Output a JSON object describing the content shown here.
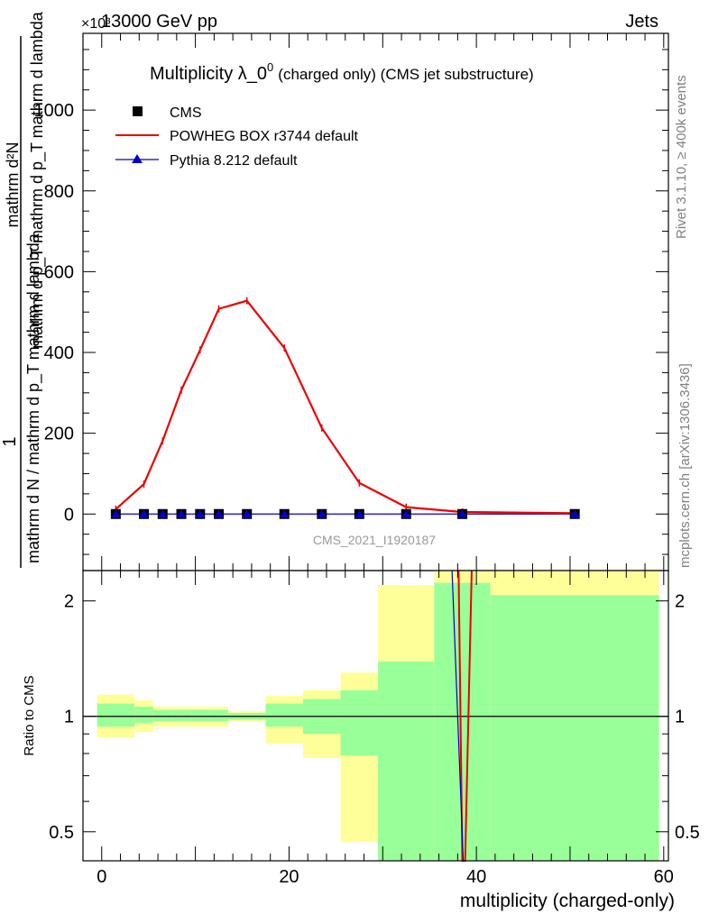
{
  "header": {
    "energy": "13000 GeV pp",
    "category": "Jets",
    "exponent": "×10³",
    "rivet": "Rivet 3.1.10, ≥ 400k events",
    "mcplots": "mcplots.cern.ch [arXiv:1306.3436]"
  },
  "chart_data": [
    {
      "type": "line",
      "title": "Multiplicity λ_0⁰",
      "title_main": "Multiplicity λ_0",
      "title_sup": "0",
      "title_note": "(charged only) (CMS jet substructure)",
      "ylabel_parts": [
        "1",
        "mathrm d N / mathrm d p_T mathrm d lambda",
        "mathrm d²N",
        "mathrm d p_T mathrm d p_T mathrm d lambda"
      ],
      "y_scale_exponent": "×10³",
      "ylim": [
        -140,
        1190
      ],
      "xlim": [
        -2,
        60.5
      ],
      "y_ticks": [
        0,
        200,
        400,
        600,
        800,
        1000
      ],
      "analysis_id": "CMS_2021_I1920187",
      "x": [
        1.5,
        4.5,
        6.5,
        8.5,
        10.5,
        12.5,
        15.5,
        19.5,
        23.5,
        27.5,
        32.5,
        38.5,
        50.5
      ],
      "series": [
        {
          "name": "CMS",
          "marker": "square",
          "color": "#000000",
          "values": [
            0,
            0,
            0,
            0,
            0,
            0,
            0,
            0,
            0,
            0,
            0,
            0,
            0
          ]
        },
        {
          "name": "POWHEG BOX r3744 default",
          "marker": "none",
          "color": "#ee0000",
          "values": [
            12,
            74,
            181,
            307,
            406,
            508,
            528,
            411,
            213,
            77,
            17,
            5,
            2
          ]
        },
        {
          "name": "Pythia 8.212 default",
          "marker": "triangle",
          "color": "#0000cc",
          "values": [
            0,
            0,
            0,
            0,
            0,
            0,
            0,
            0,
            0,
            0,
            0,
            0,
            0
          ]
        }
      ],
      "legend": [
        "CMS",
        "POWHEG BOX r3744 default",
        "Pythia 8.212 default"
      ]
    },
    {
      "type": "line",
      "ylabel": "Ratio to CMS",
      "xlabel": "multiplicity (charged-only)",
      "yscale": "log",
      "ylim": [
        0.42,
        2.4
      ],
      "xlim": [
        -2,
        60.5
      ],
      "x_ticks": [
        0,
        20,
        40,
        60
      ],
      "y_tick_labels": [
        "0.5",
        "1",
        "2"
      ],
      "y_tick_values": [
        0.5,
        1,
        2
      ],
      "bins": [
        [
          -0.5,
          3.5
        ],
        [
          3.5,
          5.5
        ],
        [
          5.5,
          7.5
        ],
        [
          7.5,
          9.5
        ],
        [
          9.5,
          11.5
        ],
        [
          11.5,
          13.5
        ],
        [
          13.5,
          17.5
        ],
        [
          17.5,
          21.5
        ],
        [
          21.5,
          25.5
        ],
        [
          25.5,
          29.5
        ],
        [
          29.5,
          35.5
        ],
        [
          35.5,
          41.5
        ],
        [
          41.5,
          59.5
        ]
      ],
      "band_stat": [
        [
          0.94,
          1.08
        ],
        [
          0.96,
          1.06
        ],
        [
          0.97,
          1.04
        ],
        [
          0.97,
          1.04
        ],
        [
          0.97,
          1.04
        ],
        [
          0.97,
          1.04
        ],
        [
          0.98,
          1.02
        ],
        [
          0.94,
          1.08
        ],
        [
          0.9,
          1.11
        ],
        [
          0.79,
          1.17
        ],
        [
          0.42,
          1.39
        ],
        [
          0.42,
          2.23
        ],
        [
          0.42,
          2.07
        ]
      ],
      "band_total": [
        [
          0.88,
          1.14
        ],
        [
          0.91,
          1.1
        ],
        [
          0.94,
          1.06
        ],
        [
          0.94,
          1.06
        ],
        [
          0.94,
          1.06
        ],
        [
          0.94,
          1.06
        ],
        [
          0.97,
          1.03
        ],
        [
          0.85,
          1.13
        ],
        [
          0.78,
          1.17
        ],
        [
          0.47,
          1.3
        ],
        [
          0.42,
          2.2
        ],
        [
          0.42,
          2.5
        ],
        [
          0.42,
          2.5
        ]
      ],
      "ratio_lines": [
        {
          "name": "POWHEG BOX r3744 default",
          "color": "#ee0000",
          "x": [
            38.1,
            38.5,
            38.6,
            38.8,
            39.5
          ],
          "values": [
            2.4,
            0.42,
            0.42,
            0.42,
            2.4
          ]
        },
        {
          "name": "Pythia 8.212 default",
          "color": "#0000cc",
          "x": [
            37.4,
            38.6
          ],
          "values": [
            2.4,
            0.42
          ]
        }
      ],
      "colors": {
        "stat": "#99ff99",
        "total": "#ffff99",
        "unity": "#000000"
      }
    }
  ]
}
